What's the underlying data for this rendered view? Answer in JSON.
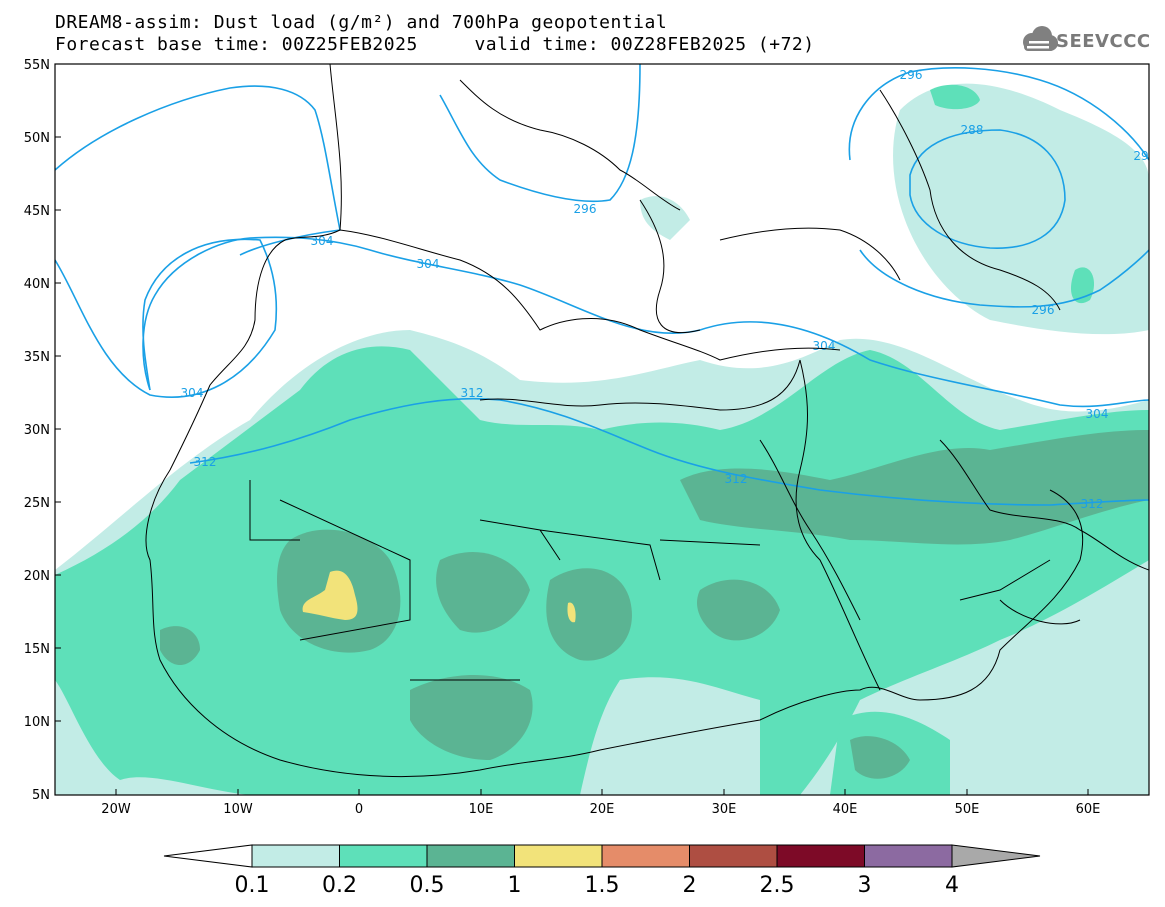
{
  "header": {
    "title_line1": "DREAM8-assim: Dust load (g/m²) and 700hPa geopotential",
    "title_line2": "Forecast base time: 00Z25FEB2025     valid time: 00Z28FEB2025 (+72)",
    "logo_text": "SEEVCCC",
    "logo_icon": "cloud-icon"
  },
  "map": {
    "lon_range": [
      -25,
      65
    ],
    "lat_range": [
      5,
      55
    ],
    "lat_tick_labels": [
      "55N",
      "50N",
      "45N",
      "40N",
      "35N",
      "30N",
      "25N",
      "20N",
      "15N",
      "10N",
      "5N"
    ],
    "lon_tick_labels": [
      "20W",
      "10W",
      "0",
      "10E",
      "20E",
      "30E",
      "40E",
      "50E",
      "60E"
    ],
    "contour_labels": [
      "296",
      "288",
      "29",
      "296",
      "304",
      "304",
      "304",
      "304",
      "296",
      "312",
      "312",
      "312",
      "304",
      "312"
    ],
    "colors": {
      "dust_0_1": "#c2ece6",
      "dust_0_2": "#5ee0b9",
      "dust_0_5": "#5bb493",
      "dust_1": "#f2e37a",
      "contour": "#1aa0e6",
      "coast": "#000000"
    }
  },
  "colorbar": {
    "labels": [
      "0.1",
      "0.2",
      "0.5",
      "1",
      "1.5",
      "2",
      "2.5",
      "3",
      "4"
    ],
    "colors": [
      "#ffffff",
      "#c2ece6",
      "#5ee0b9",
      "#5bb493",
      "#f2e37a",
      "#e58c69",
      "#ae4e42",
      "#7d0a27",
      "#8c6aa1",
      "#a9a9a9"
    ]
  }
}
